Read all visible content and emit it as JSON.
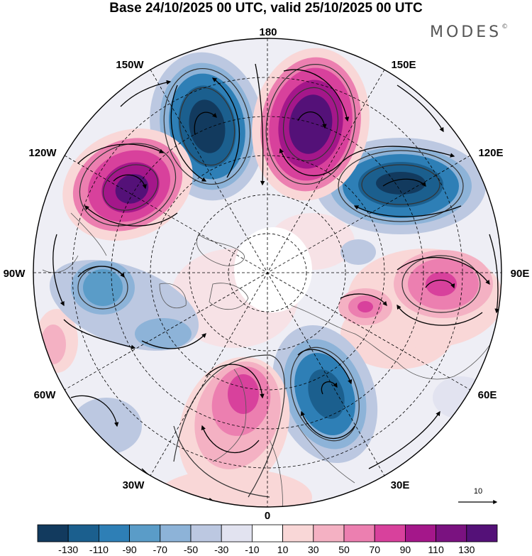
{
  "title": "Base 24/10/2025 00 UTC, valid 25/10/2025 00 UTC",
  "brand": "MODES",
  "brand_mark": "©",
  "longitude_labels": {
    "lon_180": "180",
    "lon_150e": "150E",
    "lon_120e": "120E",
    "lon_90e": "90E",
    "lon_60e": "60E",
    "lon_30e": "30E",
    "lon_0": "0",
    "lon_30w": "30W",
    "lon_60w": "60W",
    "lon_90w": "90W",
    "lon_120w": "120W",
    "lon_150w": "150W"
  },
  "vector_scale": {
    "label": "10"
  },
  "colorbar": {
    "ticks": [
      "-130",
      "-110",
      "-90",
      "-70",
      "-50",
      "-30",
      "-10",
      "10",
      "30",
      "50",
      "70",
      "90",
      "110",
      "130"
    ],
    "colors": [
      "#123a5e",
      "#1b5f8e",
      "#2e7fb6",
      "#5a9cc8",
      "#8db3d8",
      "#bcc8e1",
      "#e2e3f0",
      "#ffffff",
      "#f9d7d7",
      "#f4b1c3",
      "#ec7fb0",
      "#d8419c",
      "#a4178a",
      "#7a1280",
      "#541178"
    ]
  }
}
